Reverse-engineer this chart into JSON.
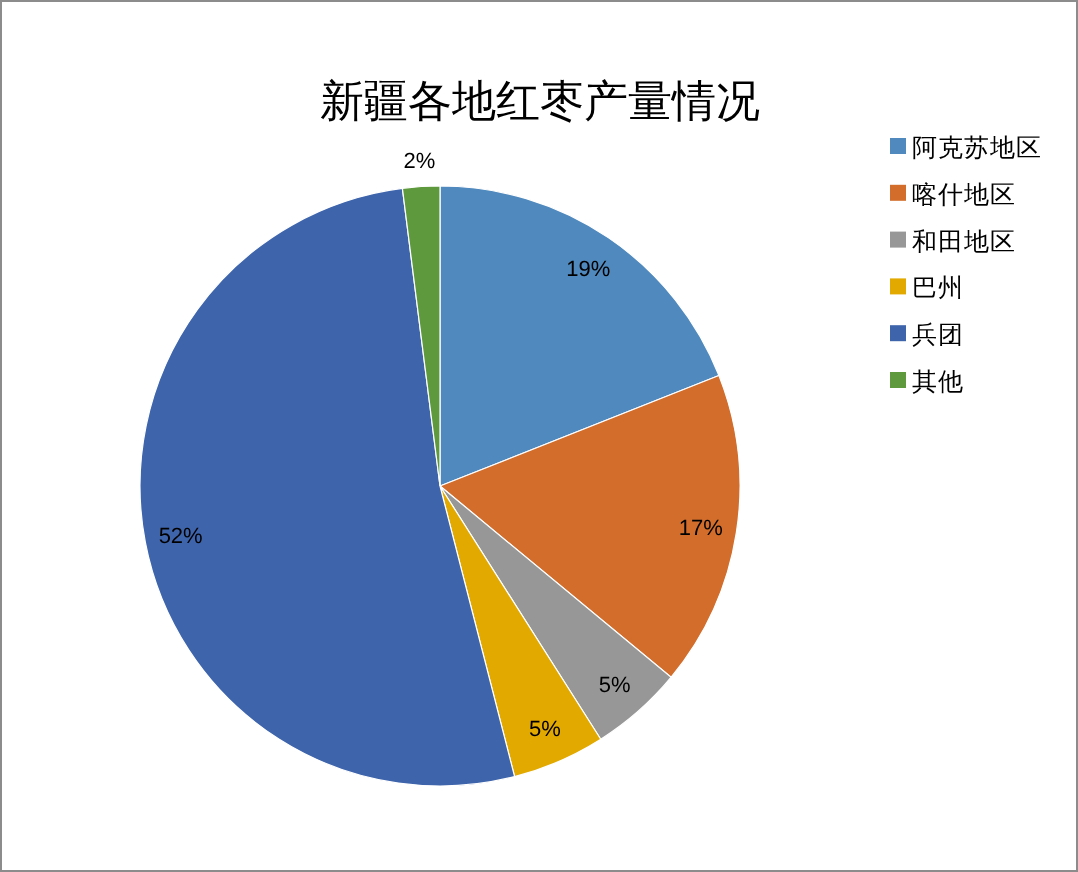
{
  "chart_data": {
    "type": "pie",
    "title": "新疆各地红枣产量情况",
    "categories": [
      "阿克苏地区",
      "喀什地区",
      "和田地区",
      "巴州",
      "兵团",
      "其他"
    ],
    "values": [
      19,
      17,
      5,
      5,
      52,
      2
    ],
    "colors": [
      "#4f89bd",
      "#d36d2b",
      "#979797",
      "#e2a900",
      "#3e64ac",
      "#5e9a3d"
    ],
    "value_labels": [
      "19%",
      "17%",
      "5%",
      "5%",
      "52%",
      "2%"
    ],
    "legend": "right"
  }
}
